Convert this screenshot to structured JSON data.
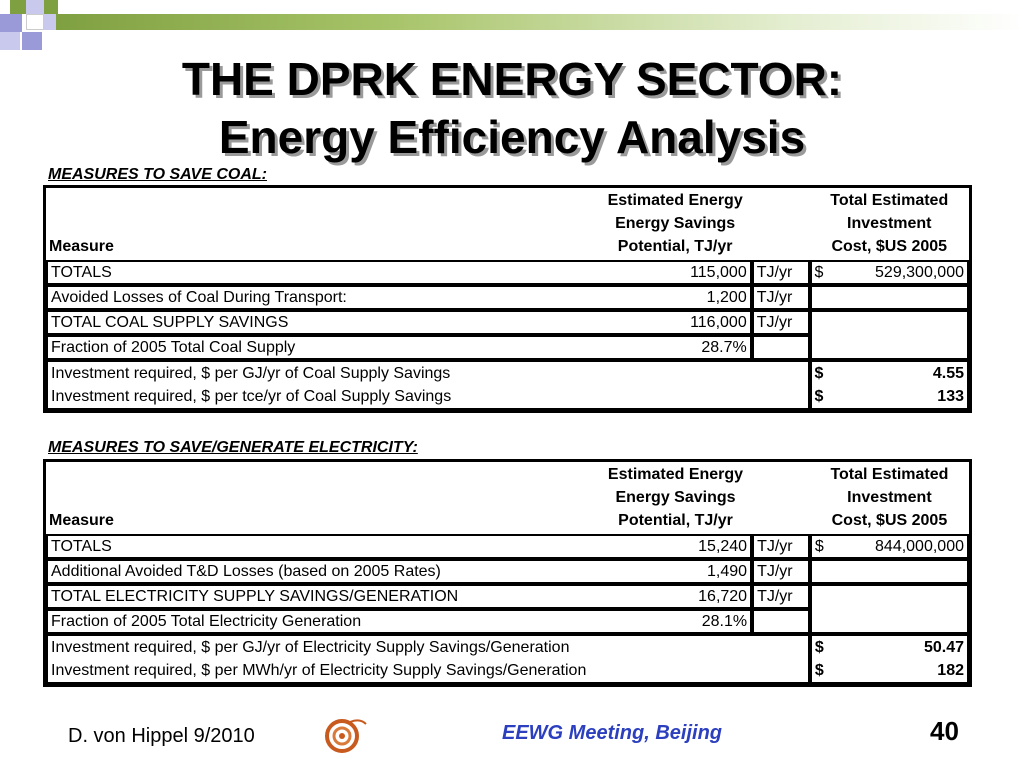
{
  "title": {
    "line1": "THE DPRK ENERGY SECTOR:",
    "line2": "Energy Efficiency Analysis"
  },
  "coal": {
    "heading": "MEASURES TO SAVE COAL:",
    "header": {
      "measure": "Measure",
      "savings_l1": "Estimated Energy",
      "savings_l2": "Energy Savings",
      "savings_l3": "Potential, TJ/yr",
      "cost_l1": "Total Estimated",
      "cost_l2": "Investment",
      "cost_l3": "Cost, $US 2005"
    },
    "rows": [
      {
        "label": "TOTALS",
        "value": "115,000",
        "unit": "TJ/yr",
        "currency": "$",
        "cost": "529,300,000"
      },
      {
        "label": "Avoided Losses of Coal During Transport:",
        "value": "1,200",
        "unit": "TJ/yr"
      },
      {
        "label": "TOTAL COAL SUPPLY SAVINGS",
        "value": "116,000",
        "unit": "TJ/yr"
      },
      {
        "label": "Fraction of 2005 Total Coal Supply",
        "value": "28.7%"
      }
    ],
    "investment": [
      {
        "label": "Investment required, $ per GJ/yr of Coal Supply Savings",
        "currency": "$",
        "value": "4.55"
      },
      {
        "label": "Investment required, $ per  tce/yr of Coal Supply Savings",
        "currency": "$",
        "value": "133"
      }
    ]
  },
  "electricity": {
    "heading": "MEASURES TO SAVE/GENERATE ELECTRICITY:",
    "header": {
      "measure": "Measure",
      "savings_l1": "Estimated Energy",
      "savings_l2": "Energy Savings",
      "savings_l3": "Potential, TJ/yr",
      "cost_l1": "Total Estimated",
      "cost_l2": "Investment",
      "cost_l3": "Cost, $US 2005"
    },
    "rows": [
      {
        "label": "TOTALS",
        "value": "15,240",
        "unit": "TJ/yr",
        "currency": "$",
        "cost": "844,000,000"
      },
      {
        "label": "Additional Avoided T&D Losses (based on 2005 Rates)",
        "value": "1,490",
        "unit": "TJ/yr"
      },
      {
        "label": "TOTAL ELECTRICITY SUPPLY SAVINGS/GENERATION",
        "value": "16,720",
        "unit": "TJ/yr"
      },
      {
        "label": "Fraction of 2005 Total Electricity Generation",
        "value": "28.1%"
      }
    ],
    "investment": [
      {
        "label": "Investment required, $ per GJ/yr of Electricity Supply Savings/Generation",
        "currency": "$",
        "value": "50.47"
      },
      {
        "label": "Investment required, $ per MWh/yr of Electricity Supply Savings/Generation",
        "currency": "$",
        "value": "182"
      }
    ]
  },
  "footer": {
    "author": "D. von Hippel  9/2010",
    "meeting": "EEWG Meeting, Beijing",
    "page": "40",
    "logo_icon": "spiral-logo-icon"
  },
  "colors": {
    "accent_green": "#7fa040",
    "square_blue": "#9a9ad8",
    "footer_blue": "#2b3fbf"
  }
}
